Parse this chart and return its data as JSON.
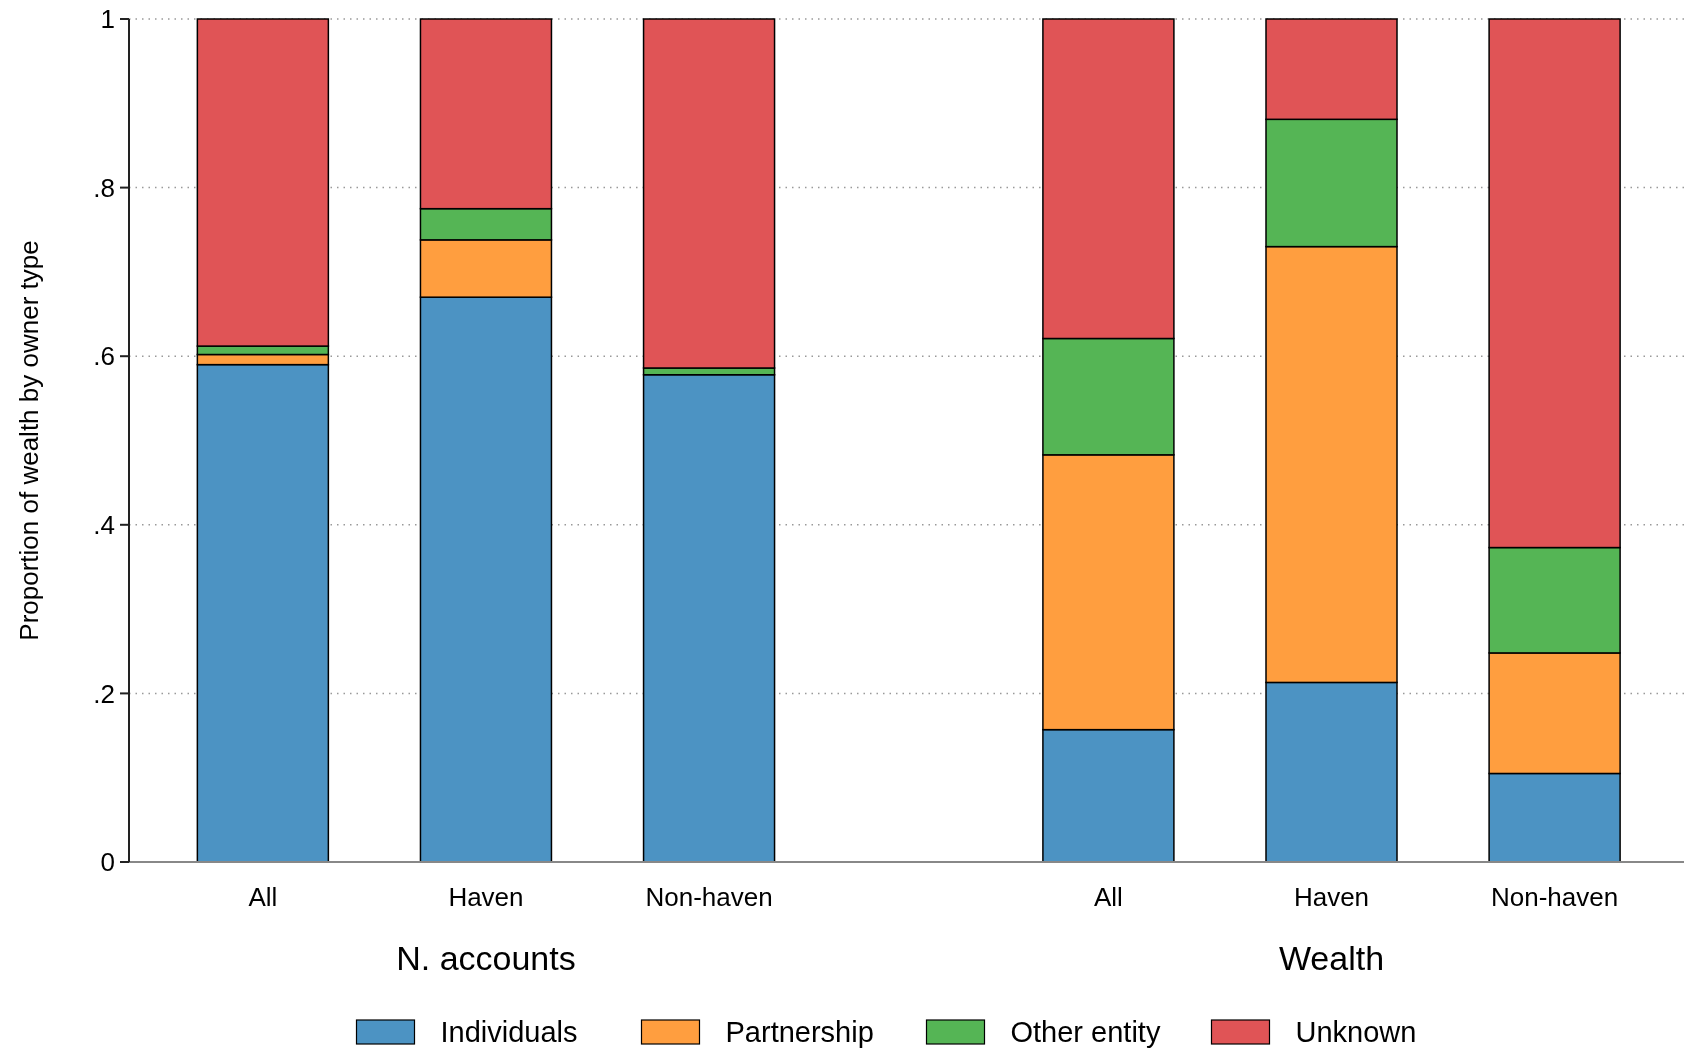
{
  "chart_data": {
    "type": "bar",
    "stacked": true,
    "ylabel": "Proportion of wealth by owner type",
    "categories": [
      "All",
      "Haven",
      "Non-haven",
      "All",
      "Haven",
      "Non-haven"
    ],
    "series": [
      {
        "name": "Individuals",
        "color": "#4c93c3",
        "values": [
          0.59,
          0.67,
          0.578,
          0.157,
          0.213,
          0.105
        ]
      },
      {
        "name": "Partnership",
        "color": "#ff9e3f",
        "values": [
          0.012,
          0.068,
          null,
          0.326,
          0.517,
          0.143
        ]
      },
      {
        "name": "Other entity",
        "color": "#55b555",
        "values": [
          0.01,
          0.037,
          0.008,
          0.138,
          0.151,
          0.125
        ]
      },
      {
        "name": "Unknown",
        "color": "#e05456",
        "values": [
          0.388,
          0.225,
          0.414,
          0.379,
          0.119,
          0.627
        ]
      }
    ],
    "annotations": [
      "N. accounts",
      "Wealth"
    ],
    "ylim": [
      0,
      1
    ],
    "yticks": [
      0,
      {
        "value": 0.2,
        "label": ".2"
      },
      {
        "value": 0.4,
        "label": ".4"
      },
      {
        "value": 0.6,
        "label": ".6"
      },
      {
        "value": 0.8,
        "label": ".8"
      },
      1
    ],
    "grid": "y",
    "legend": "bottom"
  }
}
